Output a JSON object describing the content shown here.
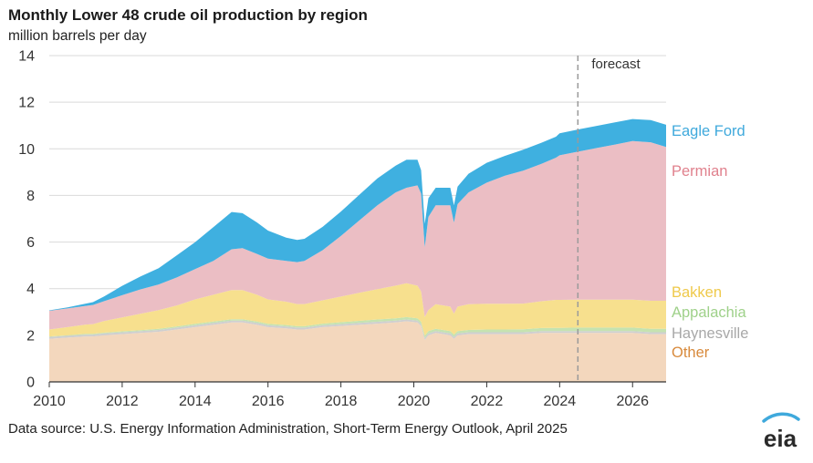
{
  "title": "Monthly Lower 48 crude oil production by region",
  "subtitle": "million barrels per day",
  "source": "Data source: U.S. Energy Information Administration, Short-Term Energy Outlook, April 2025",
  "logo_text": "eia",
  "chart_data": {
    "type": "area",
    "stacked": true,
    "ylabel": "million barrels per day",
    "ylim": [
      0,
      14
    ],
    "yticks": [
      0,
      2,
      4,
      6,
      8,
      10,
      12,
      14
    ],
    "xlim": [
      2010,
      2026.92
    ],
    "xticks": [
      "2010",
      "2012",
      "2014",
      "2016",
      "2018",
      "2020",
      "2022",
      "2024",
      "2026"
    ],
    "grid": true,
    "forecast_start": 2024.5,
    "forecast_label": "forecast",
    "x": [
      2010.0,
      2010.5,
      2011.0,
      2011.2,
      2011.5,
      2012.0,
      2012.5,
      2013.0,
      2013.5,
      2014.0,
      2014.5,
      2015.0,
      2015.3,
      2015.7,
      2016.0,
      2016.5,
      2016.8,
      2017.0,
      2017.5,
      2018.0,
      2018.5,
      2019.0,
      2019.5,
      2019.8,
      2020.1,
      2020.2,
      2020.3,
      2020.4,
      2020.6,
      2021.0,
      2021.1,
      2021.2,
      2021.5,
      2022.0,
      2022.5,
      2023.0,
      2023.5,
      2023.9,
      2024.0,
      2024.5,
      2025.0,
      2025.5,
      2026.0,
      2026.5,
      2026.92
    ],
    "series": [
      {
        "name": "Other",
        "color": "#f3d7bd",
        "values": [
          1.85,
          1.9,
          1.95,
          1.95,
          2.0,
          2.05,
          2.1,
          2.15,
          2.25,
          2.35,
          2.45,
          2.55,
          2.55,
          2.45,
          2.35,
          2.3,
          2.25,
          2.25,
          2.35,
          2.4,
          2.45,
          2.5,
          2.55,
          2.6,
          2.55,
          2.4,
          1.8,
          2.0,
          2.1,
          2.0,
          1.85,
          2.0,
          2.05,
          2.05,
          2.05,
          2.05,
          2.1,
          2.1,
          2.1,
          2.1,
          2.1,
          2.1,
          2.1,
          2.05,
          2.05
        ]
      },
      {
        "name": "Haynesville",
        "color": "#cfcfcf",
        "values": [
          0.08,
          0.08,
          0.08,
          0.08,
          0.08,
          0.08,
          0.08,
          0.08,
          0.08,
          0.08,
          0.08,
          0.08,
          0.08,
          0.08,
          0.08,
          0.08,
          0.08,
          0.08,
          0.08,
          0.08,
          0.08,
          0.08,
          0.08,
          0.08,
          0.08,
          0.08,
          0.08,
          0.08,
          0.08,
          0.08,
          0.08,
          0.08,
          0.08,
          0.08,
          0.08,
          0.08,
          0.08,
          0.08,
          0.08,
          0.08,
          0.08,
          0.08,
          0.08,
          0.08,
          0.08
        ]
      },
      {
        "name": "Appalachia",
        "color": "#c5e3b0",
        "values": [
          0.02,
          0.02,
          0.03,
          0.03,
          0.03,
          0.04,
          0.04,
          0.05,
          0.05,
          0.06,
          0.06,
          0.06,
          0.06,
          0.06,
          0.06,
          0.06,
          0.06,
          0.06,
          0.07,
          0.08,
          0.09,
          0.1,
          0.1,
          0.1,
          0.1,
          0.1,
          0.1,
          0.1,
          0.1,
          0.1,
          0.1,
          0.1,
          0.1,
          0.12,
          0.12,
          0.13,
          0.13,
          0.14,
          0.14,
          0.15,
          0.15,
          0.15,
          0.15,
          0.15,
          0.15
        ]
      },
      {
        "name": "Bakken",
        "color": "#f7e08e",
        "values": [
          0.3,
          0.35,
          0.4,
          0.42,
          0.5,
          0.6,
          0.7,
          0.8,
          0.9,
          1.05,
          1.15,
          1.25,
          1.25,
          1.15,
          1.05,
          1.0,
          0.95,
          0.95,
          1.0,
          1.1,
          1.2,
          1.3,
          1.4,
          1.45,
          1.4,
          1.3,
          0.8,
          0.9,
          1.05,
          1.05,
          0.9,
          1.05,
          1.1,
          1.1,
          1.1,
          1.1,
          1.15,
          1.2,
          1.2,
          1.2,
          1.2,
          1.2,
          1.2,
          1.2,
          1.2
        ]
      },
      {
        "name": "Permian",
        "color": "#ebbec4",
        "values": [
          0.8,
          0.8,
          0.8,
          0.82,
          0.85,
          0.95,
          1.05,
          1.1,
          1.2,
          1.3,
          1.45,
          1.75,
          1.8,
          1.75,
          1.75,
          1.75,
          1.8,
          1.85,
          2.15,
          2.6,
          3.1,
          3.6,
          4.0,
          4.1,
          4.3,
          4.2,
          3.0,
          4.0,
          4.25,
          4.35,
          3.9,
          4.4,
          4.8,
          5.2,
          5.5,
          5.7,
          5.9,
          6.1,
          6.2,
          6.35,
          6.5,
          6.65,
          6.8,
          6.8,
          6.6
        ]
      },
      {
        "name": "Eagle Ford",
        "color": "#3fb0e0",
        "values": [
          0.02,
          0.05,
          0.1,
          0.12,
          0.2,
          0.4,
          0.55,
          0.7,
          0.95,
          1.15,
          1.45,
          1.6,
          1.5,
          1.35,
          1.2,
          1.0,
          0.95,
          0.95,
          1.0,
          1.05,
          1.1,
          1.15,
          1.15,
          1.2,
          1.1,
          1.0,
          1.0,
          0.8,
          0.75,
          0.75,
          0.75,
          0.75,
          0.8,
          0.85,
          0.85,
          0.9,
          0.9,
          0.9,
          0.95,
          0.95,
          0.95,
          0.95,
          0.95,
          0.95,
          0.95
        ]
      }
    ],
    "legend": [
      {
        "label": "Eagle Ford",
        "color": "#3fa9dc"
      },
      {
        "label": "Permian",
        "color": "#e0818d"
      },
      {
        "label": "Bakken",
        "color": "#efc94a"
      },
      {
        "label": "Appalachia",
        "color": "#9fd18a"
      },
      {
        "label": "Haynesville",
        "color": "#a8a8a8"
      },
      {
        "label": "Other",
        "color": "#d88a3c"
      }
    ],
    "legend_placement": "right"
  }
}
